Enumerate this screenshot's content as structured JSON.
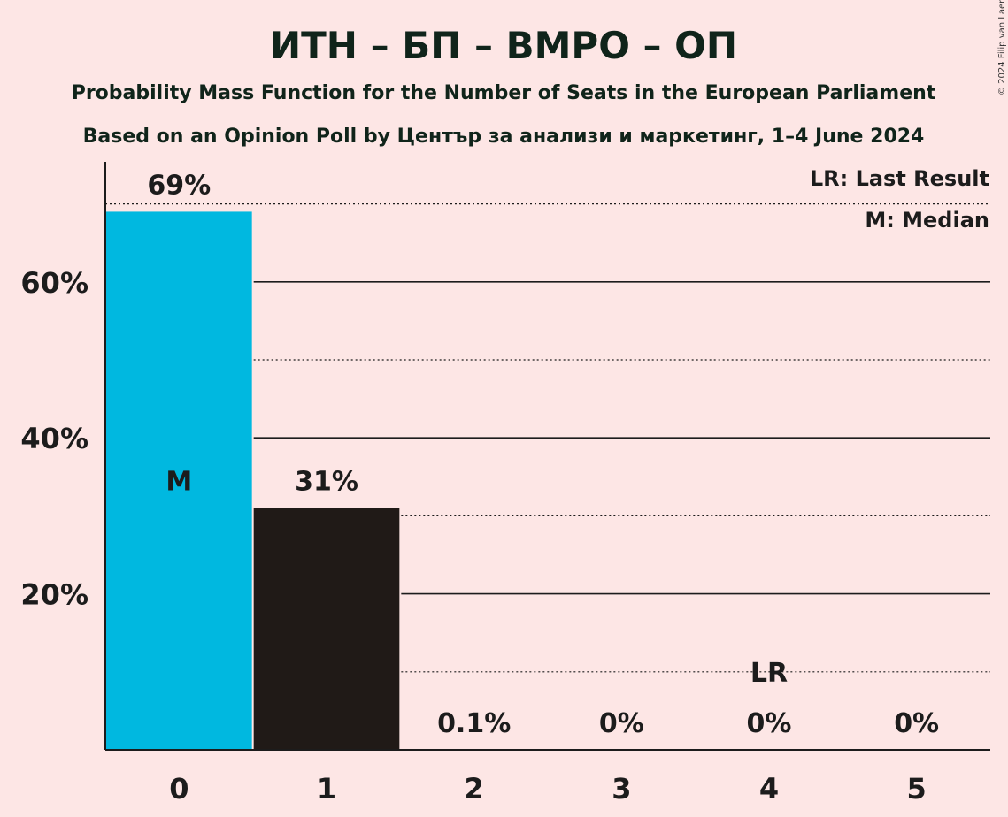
{
  "chart_data": {
    "type": "bar",
    "title": "ИТН – БП – ВМРО – ОП",
    "subtitle1": "Probability Mass Function for the Number of Seats in the European Parliament",
    "subtitle2": "Based on an Opinion Poll by Център за анализи и маркетинг, 1–4 June 2024",
    "copyright": "© 2024 Filip van Laenen",
    "categories": [
      "0",
      "1",
      "2",
      "3",
      "4",
      "5"
    ],
    "values": [
      69,
      31,
      0.1,
      0,
      0,
      0
    ],
    "value_labels": [
      "69%",
      "31%",
      "0.1%",
      "0%",
      "0%",
      "0%"
    ],
    "ylim": [
      0,
      75
    ],
    "y_ticks": [
      20,
      40,
      60
    ],
    "y_tick_labels": [
      "20%",
      "40%",
      "60%"
    ],
    "median_index": 0,
    "median_label": "M",
    "last_result_index": 4,
    "last_result_label": "LR",
    "legend": [
      "LR: Last Result",
      "M: Median"
    ],
    "legend_position": "top-right",
    "grid": true,
    "colors": {
      "median_bar": "#00b8e0",
      "bar": "#201a17",
      "background": "#fde6e5",
      "median_text": "#fde6e5"
    }
  }
}
